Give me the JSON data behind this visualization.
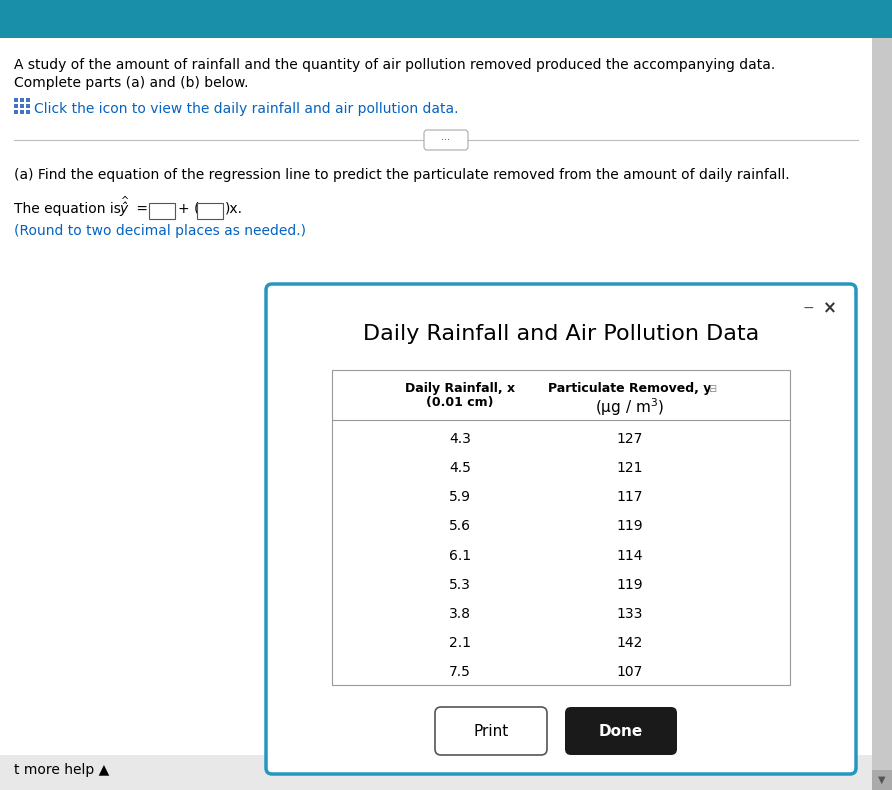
{
  "bg_color": "#ffffff",
  "top_bar_color": "#1a8faa",
  "scrollbar_color": "#c8c8c8",
  "bottom_bar_color": "#e8e8e8",
  "main_text_lines": [
    "A study of the amount of rainfall and the quantity of air pollution removed produced the accompanying data.",
    "Complete parts (a) and (b) below."
  ],
  "click_text": "Click the icon to view the daily rainfall and air pollution data.",
  "section_a_text": "(a) Find the equation of the regression line to predict the particulate removed from the amount of daily rainfall.",
  "round_note": "(Round to two decimal places as needed.)",
  "more_help_text": "t more help ▲",
  "dialog_title": "Daily Rainfall and Air Pollution Data",
  "dialog_bg": "#ffffff",
  "dialog_border_color": "#2596be",
  "col1_header_line1": "Daily Rainfall, x",
  "col1_header_line2": "(0.01 cm)",
  "col2_header_line1": "Particulate Removed, y",
  "col2_header_line2": "(µg/m³)",
  "x_data": [
    4.3,
    4.5,
    5.9,
    5.6,
    6.1,
    5.3,
    3.8,
    2.1,
    7.5
  ],
  "y_data": [
    127,
    121,
    117,
    119,
    114,
    119,
    133,
    142,
    107
  ],
  "print_btn_text": "Print",
  "done_btn_text": "Done",
  "highlight_color": "#0563c1",
  "text_color": "#000000",
  "dark_bg": "#1a1a1a",
  "icon_color": "#4472c4"
}
